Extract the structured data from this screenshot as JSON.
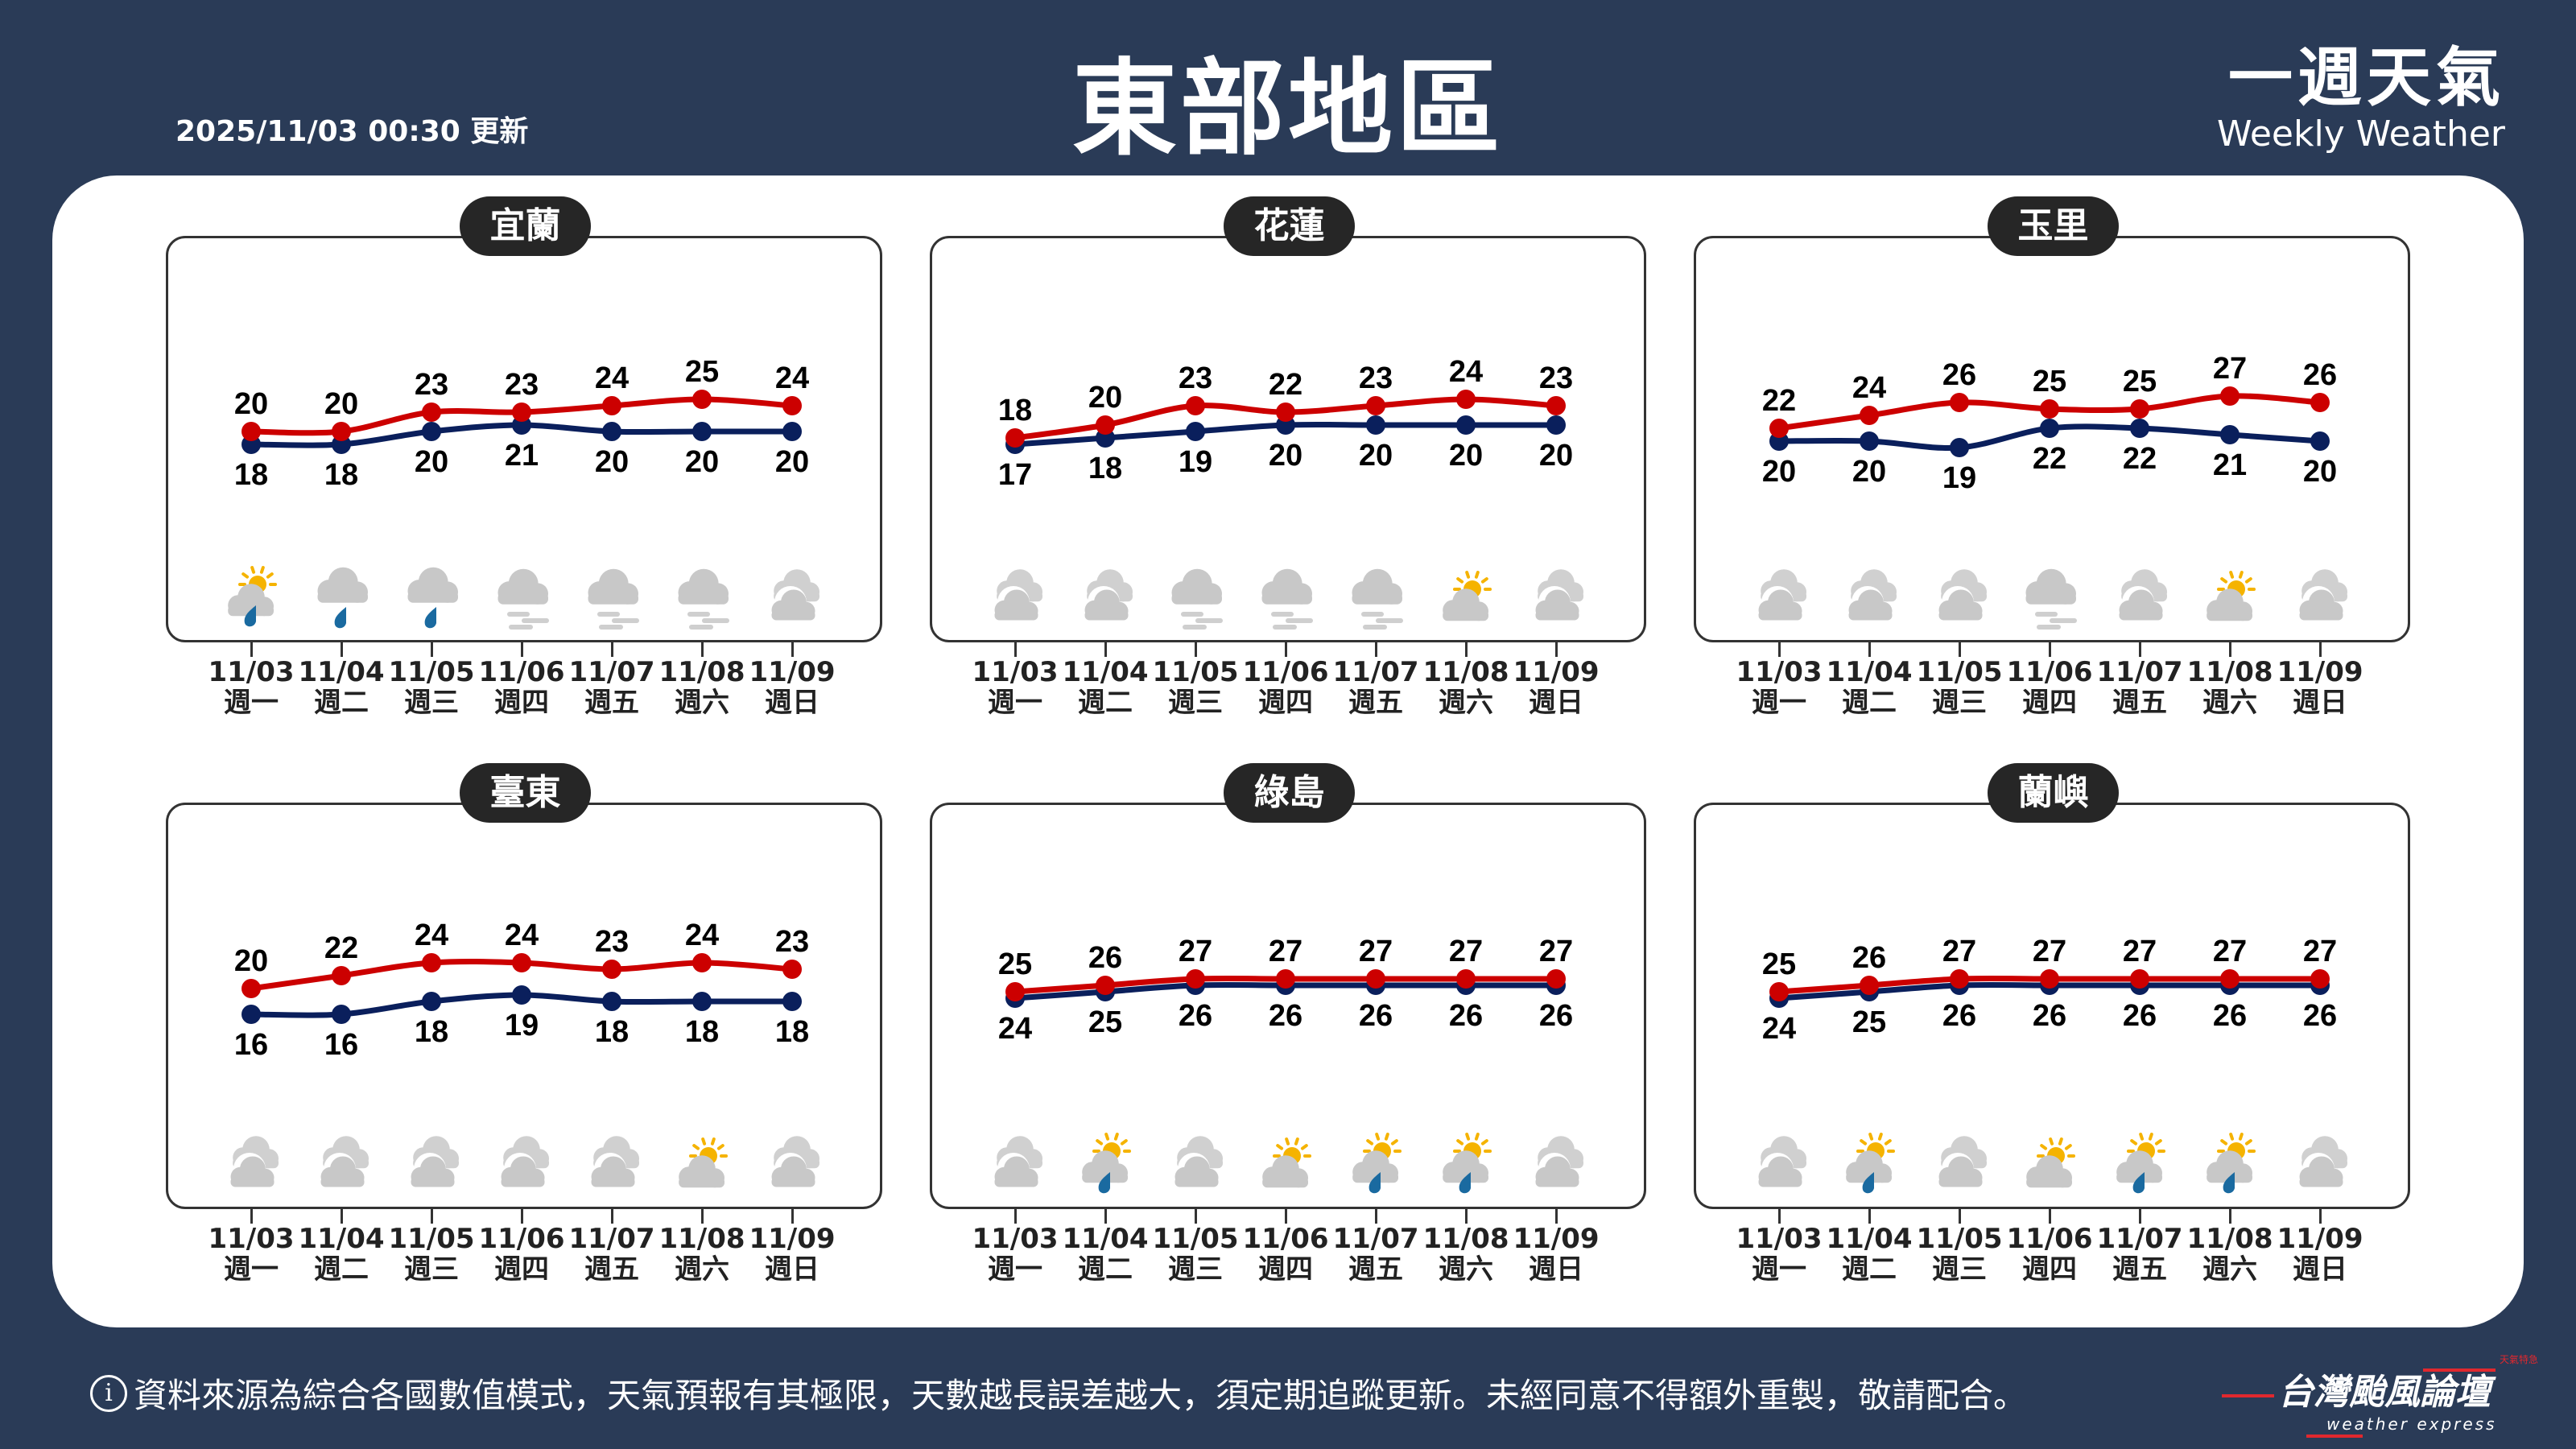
{
  "header": {
    "updated": "2025/11/03 00:30 更新",
    "title": "東部地區",
    "brand_zh": "一週天氣",
    "brand_en": "Weekly Weather"
  },
  "colors": {
    "background": "#2a3b57",
    "high": "#cc0000",
    "low": "#0a1f5c",
    "pill": "#262626"
  },
  "days": [
    {
      "date": "11/03",
      "weekday": "週一"
    },
    {
      "date": "11/04",
      "weekday": "週二"
    },
    {
      "date": "11/05",
      "weekday": "週三"
    },
    {
      "date": "11/06",
      "weekday": "週四"
    },
    {
      "date": "11/07",
      "weekday": "週五"
    },
    {
      "date": "11/08",
      "weekday": "週六"
    },
    {
      "date": "11/09",
      "weekday": "週日"
    }
  ],
  "chart_data": [
    {
      "type": "line",
      "title": "宜蘭",
      "categories": [
        "11/03",
        "11/04",
        "11/05",
        "11/06",
        "11/07",
        "11/08",
        "11/09"
      ],
      "series": [
        {
          "values": [
            20,
            20,
            23,
            23,
            24,
            25,
            24
          ]
        },
        {
          "values": [
            18,
            18,
            20,
            21,
            20,
            20,
            20
          ]
        }
      ],
      "icons": [
        "partly-cloudy-rain",
        "rain",
        "rain",
        "fog",
        "fog",
        "fog",
        "cloudy"
      ]
    },
    {
      "type": "line",
      "title": "花蓮",
      "categories": [
        "11/03",
        "11/04",
        "11/05",
        "11/06",
        "11/07",
        "11/08",
        "11/09"
      ],
      "series": [
        {
          "values": [
            18,
            20,
            23,
            22,
            23,
            24,
            23
          ]
        },
        {
          "values": [
            17,
            18,
            19,
            20,
            20,
            20,
            20
          ]
        }
      ],
      "icons": [
        "cloudy",
        "cloudy",
        "fog",
        "fog",
        "fog",
        "partly-cloudy",
        "cloudy"
      ]
    },
    {
      "type": "line",
      "title": "玉里",
      "categories": [
        "11/03",
        "11/04",
        "11/05",
        "11/06",
        "11/07",
        "11/08",
        "11/09"
      ],
      "series": [
        {
          "values": [
            22,
            24,
            26,
            25,
            25,
            27,
            26
          ]
        },
        {
          "values": [
            20,
            20,
            19,
            22,
            22,
            21,
            20
          ]
        }
      ],
      "icons": [
        "cloudy",
        "cloudy",
        "cloudy",
        "fog",
        "cloudy",
        "partly-cloudy",
        "cloudy"
      ]
    },
    {
      "type": "line",
      "title": "臺東",
      "categories": [
        "11/03",
        "11/04",
        "11/05",
        "11/06",
        "11/07",
        "11/08",
        "11/09"
      ],
      "series": [
        {
          "values": [
            20,
            22,
            24,
            24,
            23,
            24,
            23
          ]
        },
        {
          "values": [
            16,
            16,
            18,
            19,
            18,
            18,
            18
          ]
        }
      ],
      "icons": [
        "cloudy",
        "cloudy",
        "cloudy",
        "cloudy",
        "cloudy",
        "partly-cloudy",
        "cloudy"
      ]
    },
    {
      "type": "line",
      "title": "綠島",
      "categories": [
        "11/03",
        "11/04",
        "11/05",
        "11/06",
        "11/07",
        "11/08",
        "11/09"
      ],
      "series": [
        {
          "values": [
            25,
            26,
            27,
            27,
            27,
            27,
            27
          ]
        },
        {
          "values": [
            24,
            25,
            26,
            26,
            26,
            26,
            26
          ]
        }
      ],
      "icons": [
        "cloudy",
        "partly-cloudy-rain",
        "cloudy",
        "partly-cloudy",
        "partly-cloudy-rain",
        "partly-cloudy-rain",
        "cloudy"
      ]
    },
    {
      "type": "line",
      "title": "蘭嶼",
      "categories": [
        "11/03",
        "11/04",
        "11/05",
        "11/06",
        "11/07",
        "11/08",
        "11/09"
      ],
      "series": [
        {
          "values": [
            25,
            26,
            27,
            27,
            27,
            27,
            27
          ]
        },
        {
          "values": [
            24,
            25,
            26,
            26,
            26,
            26,
            26
          ]
        }
      ],
      "icons": [
        "cloudy",
        "partly-cloudy-rain",
        "cloudy",
        "partly-cloudy",
        "partly-cloudy-rain",
        "partly-cloudy-rain",
        "cloudy"
      ]
    }
  ],
  "footer": {
    "info_icon": "i",
    "notice": "資料來源為綜合各國數值模式，天氣預報有其極限，天數越長誤差越大，須定期追蹤更新。未經同意不得額外重製，敬請配合。",
    "logo_main": "台灣颱風論壇",
    "logo_sub": "weather express",
    "logo_tag": "天氣特急"
  }
}
